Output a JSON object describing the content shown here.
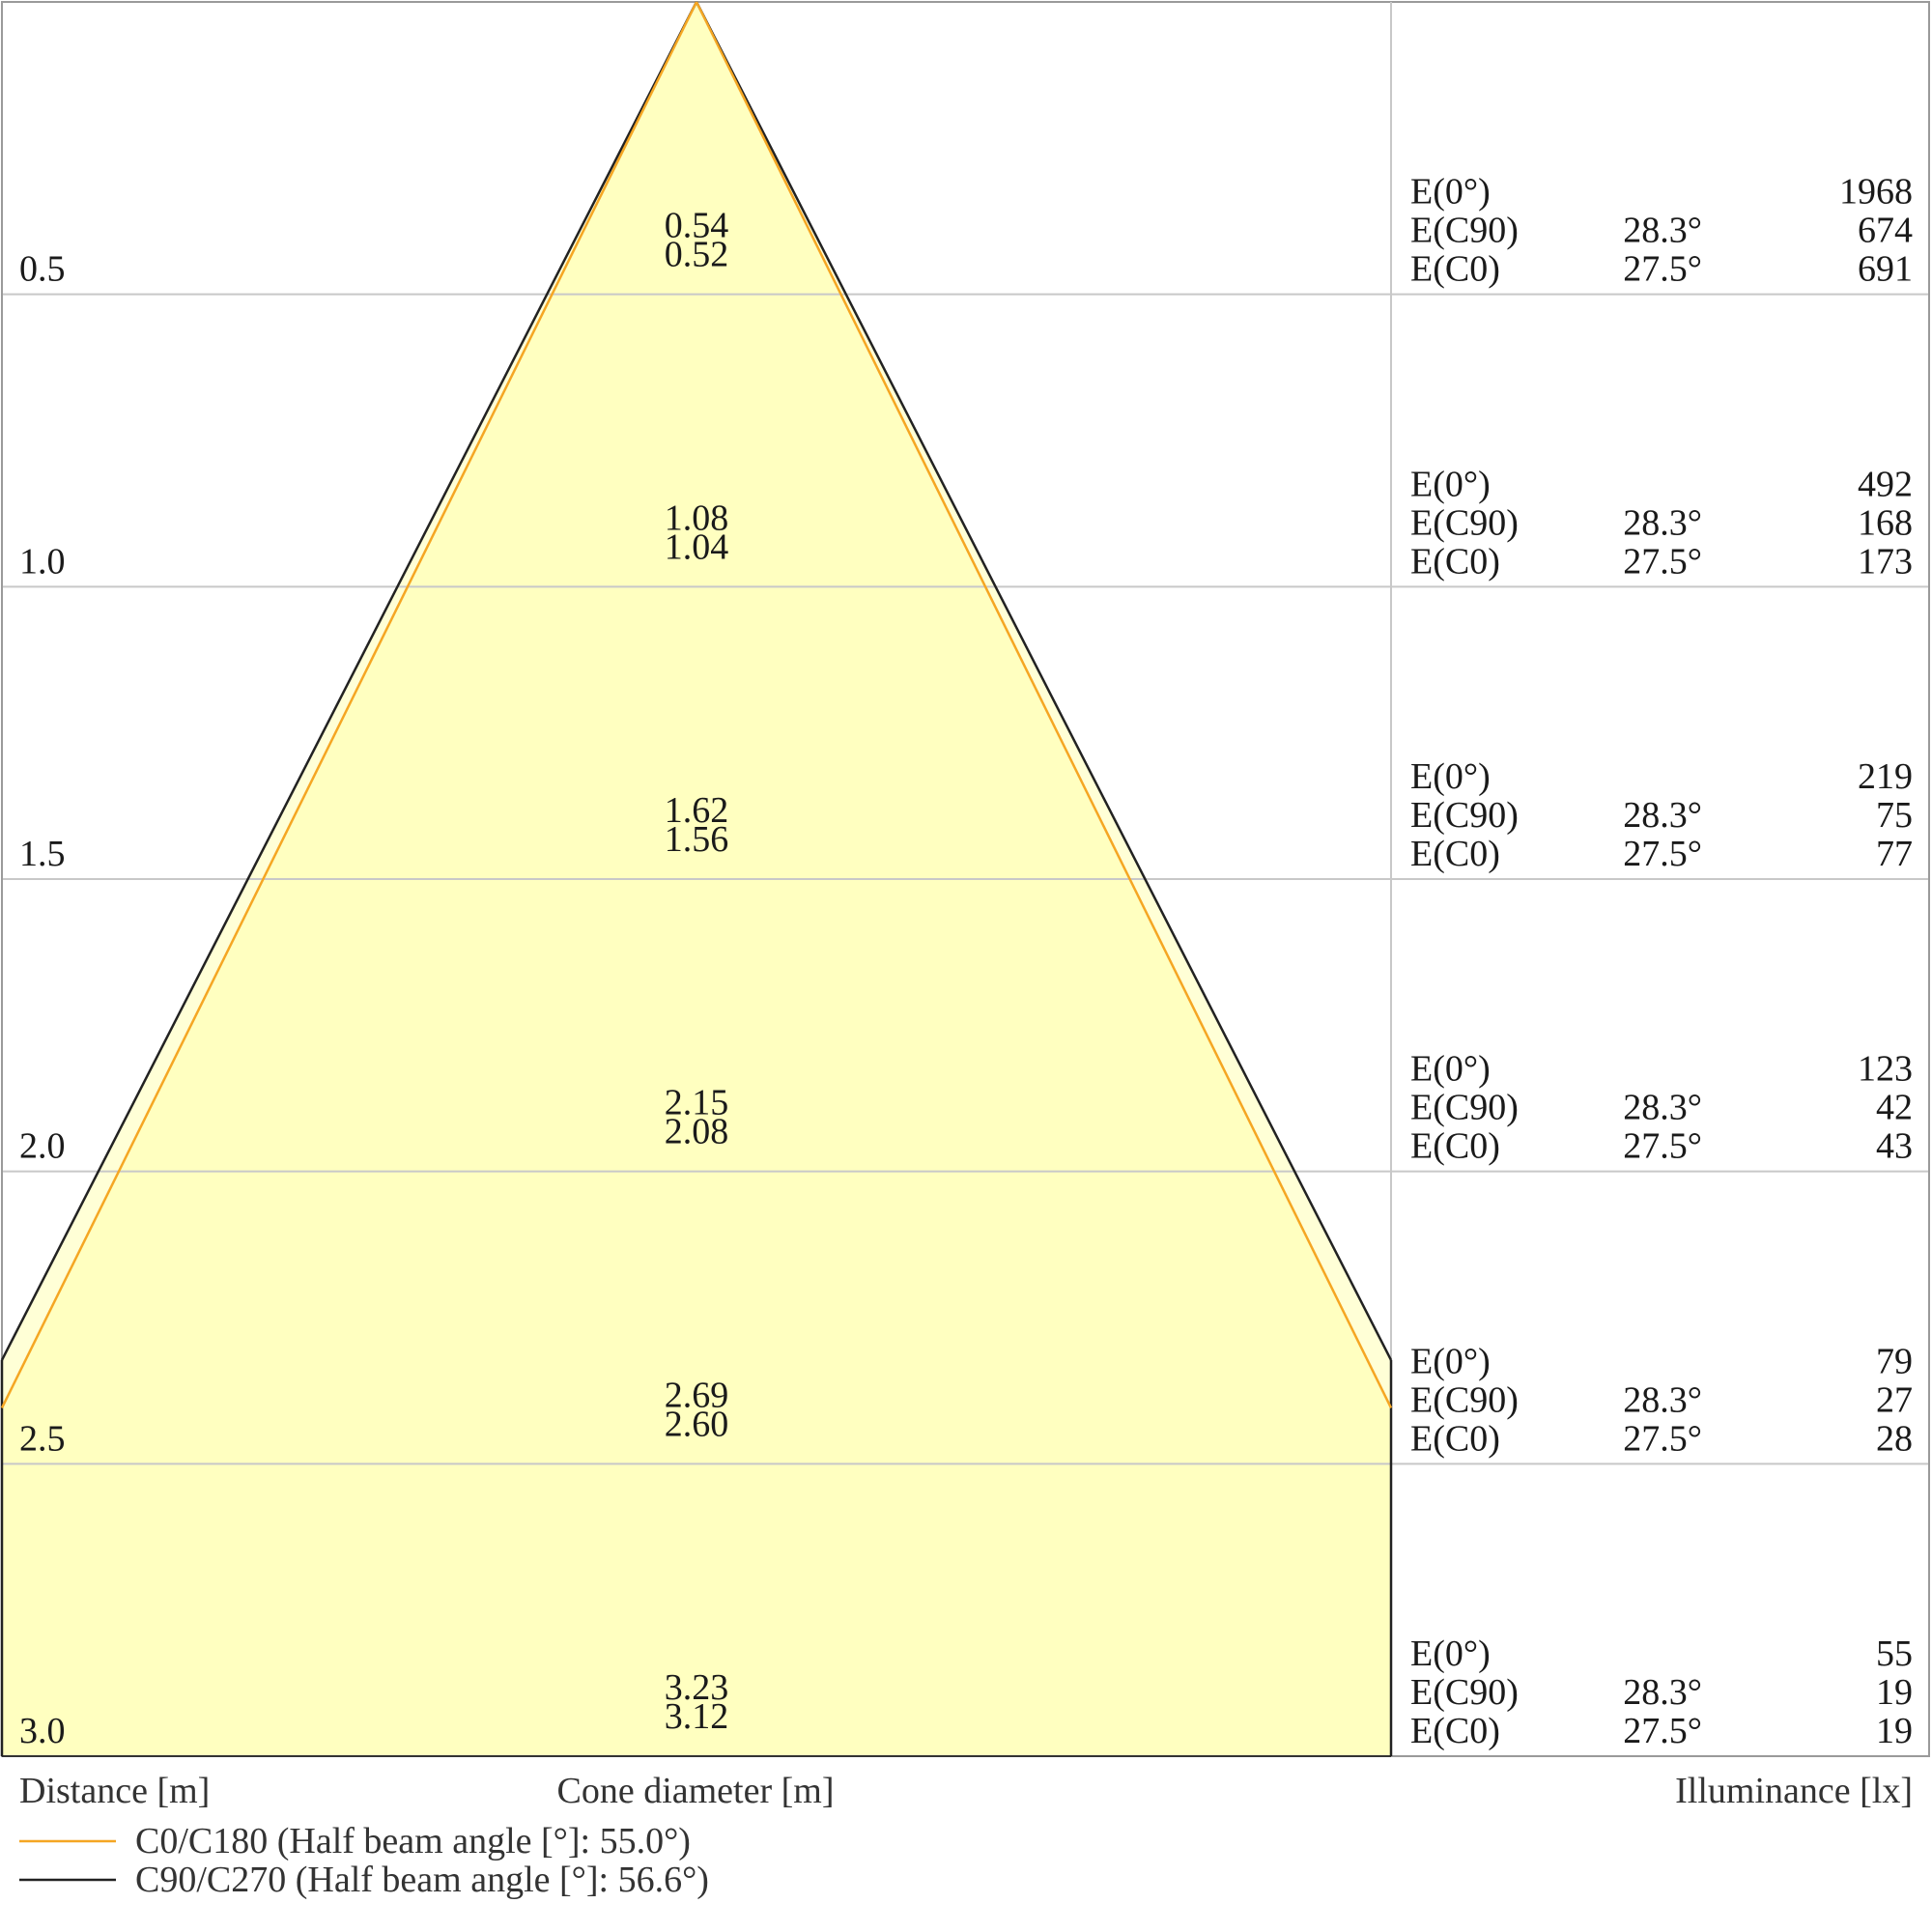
{
  "chart_data": {
    "type": "area",
    "distance_label": "Distance [m]",
    "cone_label": "Cone diameter [m]",
    "illuminance_label": "Illuminance [lx]",
    "distances": [
      "0.5",
      "1.0",
      "1.5",
      "2.0",
      "2.5",
      "3.0"
    ],
    "distance_values": [
      0.5,
      1.0,
      1.5,
      2.0,
      2.5,
      3.0
    ],
    "ylim": [
      0,
      3.0
    ],
    "c90_diameters": [
      "0.54",
      "1.08",
      "1.62",
      "2.15",
      "2.69",
      "3.23"
    ],
    "c0_diameters": [
      "0.52",
      "1.04",
      "1.56",
      "2.08",
      "2.60",
      "3.12"
    ],
    "c90_diameter_values": [
      0.54,
      1.08,
      1.62,
      2.15,
      2.69,
      3.23
    ],
    "c0_diameter_values": [
      0.52,
      1.04,
      1.56,
      2.08,
      2.6,
      3.12
    ],
    "e_center_label": "E(0°)",
    "e_c90_label": "E(C90)",
    "e_c0_label": "E(C0)",
    "c90_angle": "28.3°",
    "c0_angle": "27.5°",
    "e_center": [
      "1968",
      "492",
      "219",
      "123",
      "79",
      "55"
    ],
    "e_c90": [
      "674",
      "168",
      "75",
      "42",
      "27",
      "19"
    ],
    "e_c0": [
      "691",
      "173",
      "77",
      "43",
      "28",
      "19"
    ],
    "legend": [
      {
        "name": "C0/C180 (Half beam angle [°]: 55.0°)",
        "color": "#f5a623"
      },
      {
        "name": "C90/C270 (Half beam angle [°]: 56.6°)",
        "color": "#222222"
      }
    ],
    "fill_color": "#ffffc0",
    "grid": true
  }
}
